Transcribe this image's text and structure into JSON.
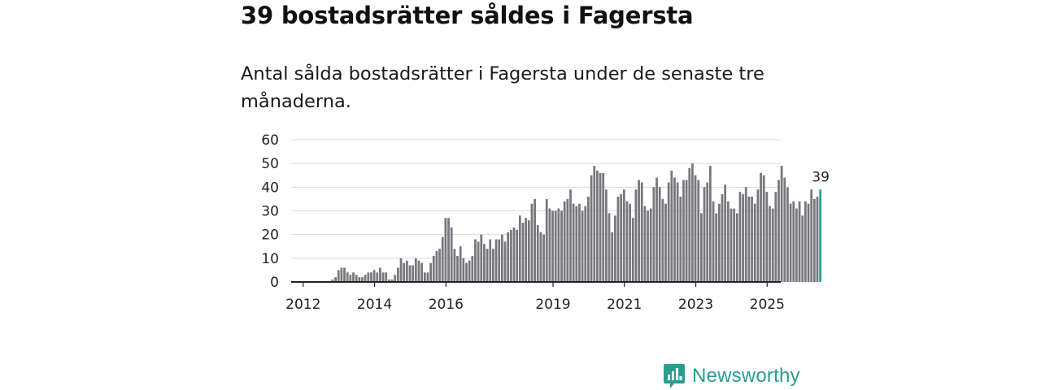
{
  "title": "39 bostadsrätter såldes i Fagersta",
  "subtitle": "Antal sålda bostadsrätter i Fagersta under de senaste tre månaderna.",
  "brand": {
    "name": "Newsworthy",
    "color": "#2a9d8f",
    "icon": "newsworthy-logo-icon"
  },
  "colors": {
    "bar": "#77777d",
    "highlight": "#2a9d8f",
    "grid": "#d9d9d9",
    "axis": "#222222"
  },
  "chart_data": {
    "type": "bar",
    "title": "39 bostadsrätter såldes i Fagersta",
    "xlabel": "",
    "ylabel": "",
    "ylim": [
      0,
      60
    ],
    "yticks": [
      0,
      10,
      20,
      30,
      40,
      50,
      60
    ],
    "x_start": {
      "year": 2011,
      "month": 10
    },
    "x_ticks": [
      {
        "label": "2012",
        "index": 3
      },
      {
        "label": "2014",
        "index": 27
      },
      {
        "label": "2016",
        "index": 51
      },
      {
        "label": "2019",
        "index": 87
      },
      {
        "label": "2021",
        "index": 111
      },
      {
        "label": "2023",
        "index": 135
      },
      {
        "label": "2025",
        "index": 159
      }
    ],
    "highlight_label": "39",
    "values": [
      0,
      0,
      0,
      0,
      0,
      0,
      0,
      0,
      0,
      0,
      0,
      0,
      0,
      1,
      2,
      5,
      6,
      6,
      4,
      3,
      4,
      3,
      2,
      2,
      3,
      4,
      4,
      5,
      4,
      6,
      4,
      4,
      1,
      1,
      3,
      6,
      10,
      8,
      9,
      7,
      7,
      10,
      9,
      8,
      4,
      4,
      8,
      11,
      13,
      14,
      19,
      27,
      27,
      23,
      14,
      11,
      15,
      10,
      8,
      9,
      11,
      18,
      17,
      20,
      16,
      14,
      18,
      14,
      18,
      18,
      20,
      17,
      21,
      22,
      23,
      22,
      28,
      25,
      27,
      26,
      33,
      35,
      24,
      21,
      20,
      35,
      31,
      30,
      30,
      31,
      30,
      34,
      35,
      39,
      33,
      32,
      33,
      30,
      32,
      36,
      45,
      49,
      47,
      46,
      46,
      39,
      29,
      21,
      28,
      36,
      37,
      39,
      34,
      33,
      27,
      39,
      43,
      42,
      32,
      30,
      31,
      40,
      44,
      40,
      35,
      33,
      42,
      47,
      44,
      42,
      36,
      43,
      43,
      48,
      50,
      45,
      43,
      29,
      40,
      42,
      49,
      34,
      29,
      33,
      37,
      41,
      34,
      31,
      31,
      29,
      38,
      37,
      40,
      36,
      36,
      33,
      39,
      46,
      45,
      38,
      32,
      31,
      38,
      43,
      49,
      44,
      40,
      33,
      34,
      31,
      34,
      28,
      34,
      33,
      39,
      35,
      36,
      39
    ]
  }
}
